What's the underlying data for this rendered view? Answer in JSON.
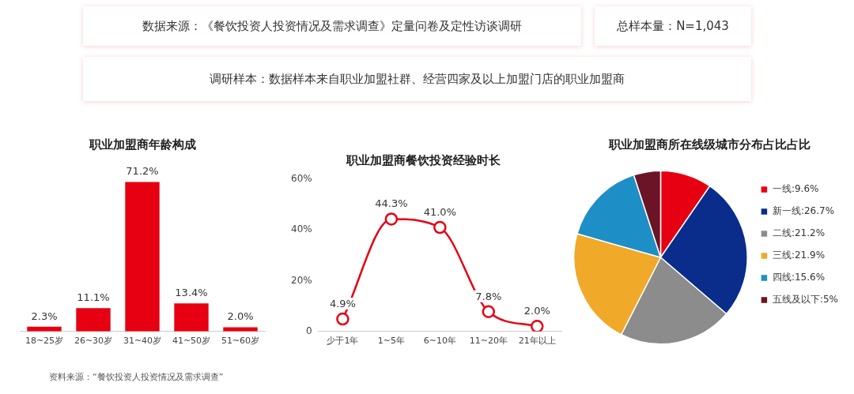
{
  "chart_data": [
    {
      "type": "other",
      "annotations": [
        "数据来源：《餐饮投资人投资情况及需求调查》定量问卷及定性访谈调研",
        "总样本量：N=1,043",
        "调研样本：数据样本来自职业加盟社群、经营四家及以上加盟门店的职业加盟商",
        "资料来源：“餐饮投资人投资情况及需求调查”"
      ]
    },
    {
      "type": "bar",
      "title": "职业加盟商年龄构成",
      "categories": [
        "18~25岁",
        "26~30岁",
        "31~40岁",
        "41~50岁",
        "51~60岁"
      ],
      "values": [
        2.3,
        11.1,
        71.2,
        13.4,
        2.0
      ],
      "value_labels": [
        "2.3%",
        "11.1%",
        "71.2%",
        "13.4%",
        "2.0%"
      ],
      "color": "#e60012",
      "grid": false,
      "tick_labels": "x",
      "legend": false
    },
    {
      "type": "line",
      "title": "职业加盟商餐饮投资经验时长",
      "categories": [
        "少于1年",
        "1~5年",
        "6~10年",
        "11~20年",
        "21年以上"
      ],
      "values": [
        4.9,
        44.3,
        41.0,
        7.8,
        2.0
      ],
      "value_labels": [
        "4.9%",
        "44.3%",
        "41.0%",
        "7.8%",
        "2.0%"
      ],
      "color": "#e60012",
      "ylim": [
        0,
        60
      ],
      "yticks": [
        0,
        {
          "value": 20,
          "label": "20%"
        },
        {
          "value": 40,
          "label": "40%"
        },
        {
          "value": 60,
          "label": "60%"
        }
      ],
      "grid": false,
      "marker": "circle",
      "line_style": "solid",
      "legend": false
    },
    {
      "type": "pie",
      "title": "职业加盟商所在线级城市分布占比占比",
      "categories": [
        "一线:9.6%",
        "新一线:26.7%",
        "二线:21.2%",
        "三线:21.9%",
        "四线:15.6%",
        "五线及以下:5%"
      ],
      "values": [
        9.6,
        26.7,
        21.2,
        21.9,
        15.6,
        5
      ],
      "colors": [
        "#e60012",
        "#0a2d8c",
        "#8c8c8c",
        "#f0a928",
        "#1e8fc6",
        "#6b1428"
      ],
      "legend": "right"
    }
  ]
}
